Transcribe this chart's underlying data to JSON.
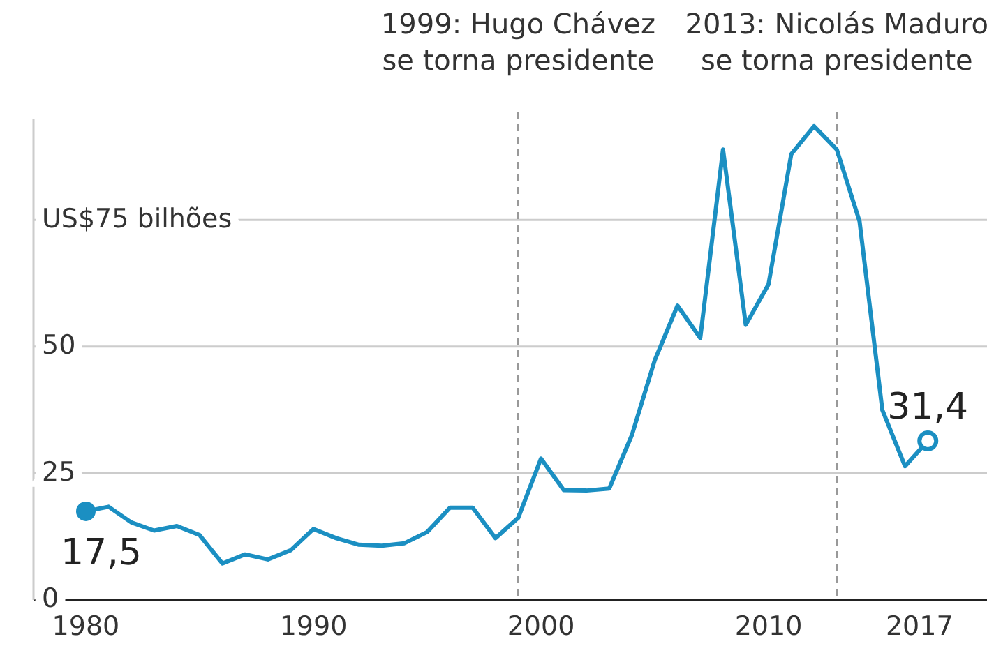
{
  "chart_data": {
    "type": "line",
    "x": [
      1980,
      1981,
      1982,
      1983,
      1984,
      1985,
      1986,
      1987,
      1988,
      1989,
      1990,
      1991,
      1992,
      1993,
      1994,
      1995,
      1996,
      1997,
      1998,
      1999,
      2000,
      2001,
      2002,
      2003,
      2004,
      2005,
      2006,
      2007,
      2008,
      2009,
      2010,
      2011,
      2012,
      2013,
      2014,
      2015,
      2016,
      2017
    ],
    "series": [
      {
        "color": "#1b8fc2",
        "values": [
          17.5,
          18.4,
          15.3,
          13.7,
          14.6,
          12.8,
          7.2,
          9.0,
          8.0,
          9.8,
          14.0,
          12.2,
          10.9,
          10.7,
          11.2,
          13.4,
          18.2,
          18.2,
          12.2,
          16.2,
          27.9,
          21.7,
          21.6,
          22.0,
          32.6,
          47.3,
          58.1,
          51.7,
          88.9,
          54.3,
          62.3,
          88.0,
          93.5,
          88.9,
          74.7,
          37.5,
          26.4,
          31.4
        ],
        "value_labels": [
          "17,5",
          null,
          null,
          null,
          null,
          null,
          null,
          null,
          null,
          null,
          null,
          null,
          null,
          null,
          null,
          null,
          null,
          null,
          null,
          null,
          null,
          null,
          null,
          null,
          null,
          null,
          null,
          null,
          null,
          null,
          null,
          null,
          null,
          null,
          null,
          null,
          null,
          "31,4"
        ]
      }
    ],
    "xlim": [
      1977.7,
      2019.6
    ],
    "xticks": [
      1980,
      1990,
      2000,
      2010,
      2017
    ],
    "ylim": [
      0,
      95
    ],
    "yticks": [
      0,
      25,
      50,
      {
        "value": 75,
        "label": "US$75 bilhões"
      }
    ],
    "grid": "y",
    "line_style": "solid",
    "ref_lines": [
      {
        "axis": "x",
        "value": 1999,
        "label": "1999: Hugo Chávez\nse torna presidente",
        "line_style": "dashed",
        "color": "#999999"
      },
      {
        "axis": "x",
        "value": 2013,
        "label": "2013: Nicolás Maduro\nse torna presidente",
        "line_style": "dashed",
        "color": "#999999"
      }
    ]
  }
}
